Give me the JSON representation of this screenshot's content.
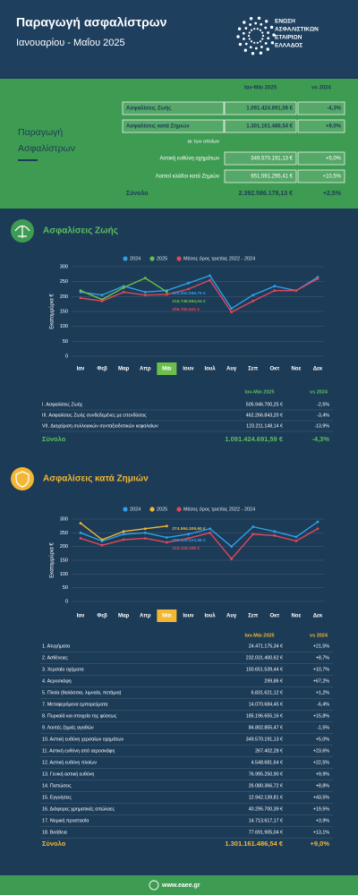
{
  "header": {
    "title": "Παραγωγή ασφαλίστρων",
    "subtitle": "Ιανουαρίου - Μαΐου 2025",
    "logo": [
      "ΕΝΩΣΗ",
      "ΑΣΦΑΛΙΣΤΙΚΩΝ",
      "ΕΤΑΙΡΙΩΝ",
      "ΕΛΛΑΔΟΣ"
    ]
  },
  "summary": {
    "label": [
      "Παραγωγή",
      "Ασφαλίστρων"
    ],
    "columns": [
      "Ιαν-Μάι 2025",
      "vs 2024"
    ],
    "rows": [
      [
        "Ασφαλίσεις Ζωής",
        "1.091.424.691,59 €",
        "-4,3%"
      ],
      [
        "Ασφαλίσεις κατά Ζημιών",
        "1.301.161.486,54 €",
        "+9,0%"
      ]
    ],
    "subheading": "εκ των οποίων",
    "subrows": [
      [
        "Αστική ευθύνη οχημάτων",
        "349.570.191,13 €",
        "+5,0%"
      ],
      [
        "Λοιποί κλάδοι κατά Ζημιών",
        "951.591.295,41 €",
        "+10,5%"
      ]
    ],
    "total": [
      "Σύνολο",
      "2.392.586.178,13 €",
      "+2,5%"
    ]
  },
  "chart_data": [
    {
      "type": "line",
      "title": "Ασφαλίσεις Ζωής",
      "y_label": "Εκατομμύρια €",
      "grid": true,
      "legend": "top",
      "categories": [
        "Ιαν",
        "Φεβ",
        "Μαρ",
        "Απρ",
        "Μάι",
        "Ιουν",
        "Ιουλ",
        "Αυγ",
        "Σεπ",
        "Οκτ",
        "Νοε",
        "Δεκ"
      ],
      "ylim": [
        0,
        300
      ],
      "yticks": [
        0,
        50,
        100,
        150,
        200,
        250,
        300
      ],
      "series": [
        {
          "name": "2024",
          "color": "#2e9fe6",
          "values": [
            215,
            205,
            235,
            215,
            220.25269979,
            245,
            270,
            160,
            205,
            235,
            220,
            265
          ],
          "value_labels": [
            null,
            null,
            null,
            null,
            "220.252.699,79 €",
            null,
            null,
            null,
            null,
            null,
            null,
            null
          ]
        },
        {
          "name": "2025",
          "color": "#6cc04a",
          "values": [
            220,
            190,
            230,
            262,
            215.74899404,
            null,
            null,
            null,
            null,
            null,
            null,
            null
          ],
          "value_labels": [
            null,
            null,
            null,
            null,
            "215.748.994,04 €",
            null,
            null,
            null,
            null,
            null,
            null,
            null
          ]
        },
        {
          "name": "Μέσος όρος τριετίας 2022 - 2024",
          "color": "#e2475a",
          "values": [
            195,
            185,
            215,
            205,
            206.782621,
            225,
            255,
            148,
            185,
            220,
            220,
            260
          ],
          "value_labels": [
            null,
            null,
            null,
            null,
            "206.782.621 €",
            null,
            null,
            null,
            null,
            null,
            null,
            null
          ]
        }
      ]
    },
    {
      "type": "line",
      "title": "Ασφαλίσεις κατά Ζημιών",
      "y_label": "Εκατομμύρια €",
      "grid": true,
      "legend": "top",
      "categories": [
        "Ιαν",
        "Φεβ",
        "Μαρ",
        "Απρ",
        "Μάι",
        "Ιουν",
        "Ιουλ",
        "Αυγ",
        "Σεπ",
        "Οκτ",
        "Νοε",
        "Δεκ"
      ],
      "ylim": [
        0,
        300
      ],
      "yticks": [
        0,
        50,
        100,
        150,
        200,
        250,
        300
      ],
      "series": [
        {
          "name": "2024",
          "color": "#2e9fe6",
          "values": [
            250,
            220,
            245,
            250,
            233.12642488,
            245,
            265,
            200,
            272,
            255,
            235,
            290
          ],
          "value_labels": [
            null,
            null,
            null,
            null,
            "233.126.424,88 €",
            null,
            null,
            null,
            null,
            null,
            null,
            null
          ]
        },
        {
          "name": "2025",
          "color": "#f3b733",
          "values": [
            285,
            225,
            255,
            265,
            274.5943096,
            null,
            null,
            null,
            null,
            null,
            null,
            null
          ],
          "value_labels": [
            null,
            null,
            null,
            null,
            "274.594.309,60 €",
            null,
            null,
            null,
            null,
            null,
            null,
            null
          ]
        },
        {
          "name": "Μέσος όρος τριετίας 2022 - 2024",
          "color": "#e2475a",
          "values": [
            230,
            205,
            225,
            230,
            215.228298,
            230,
            250,
            155,
            245,
            240,
            220,
            265
          ],
          "value_labels": [
            null,
            null,
            null,
            null,
            "215.228.298 €",
            null,
            null,
            null,
            null,
            null,
            null,
            null
          ]
        }
      ]
    }
  ],
  "tables": [
    {
      "color": "#5cbf5f",
      "columns": [
        "Ιαν-Μάι 2025",
        "vs 2024"
      ],
      "rows": [
        [
          "I. Ασφαλίσεις Ζωής",
          "505.946.700,25 €",
          "-2,5%"
        ],
        [
          "III. Ασφαλίσεις Ζωής συνδεδεμένες με επενδύσεις",
          "462.266.843,20 €",
          "-3,4%"
        ],
        [
          "VII. Διαχείριση συλλογικών συνταξιοδοτικών κεφαλαίων",
          "123.211.148,14 €",
          "-13,9%"
        ]
      ],
      "total": [
        "Σύνολο",
        "1.091.424.691,59 €",
        "-4,3%"
      ]
    },
    {
      "color": "#f3b733",
      "columns": [
        "Ιαν-Μάι 2025",
        "vs 2024"
      ],
      "rows": [
        [
          "1. Ατυχήματα",
          "24.471.175,34 €",
          "+21,5%"
        ],
        [
          "2. Ασθένειες",
          "232.031.400,62 €",
          "+8,7%"
        ],
        [
          "3. Χερσαία οχήματα",
          "150.651.539,44 €",
          "+10,7%"
        ],
        [
          "4. Αεροσκάφη",
          "299,86 €",
          "+67,2%"
        ],
        [
          "5. Πλοία (θαλάσσια, λιμναία, ποτάμια)",
          "6.831.621,12 €",
          "+1,2%"
        ],
        [
          "7. Μεταφερόμενα εμπορεύματα",
          "14.070.684,45 €",
          "-6,4%"
        ],
        [
          "8. Πυρκαϊά και στοιχεία της φύσεως",
          "185.196.655,16 €",
          "+15,8%"
        ],
        [
          "9. Λοιπές ζημιές αγαθών",
          "84.802.855,47 €",
          "-1,5%"
        ],
        [
          "10. Αστική ευθύνη χερσαίων οχημάτων",
          "349.570.191,13 €",
          "+5,0%"
        ],
        [
          "11. Αστική ευθύνη από αεροσκάφη",
          "267.402,28 €",
          "+23,6%"
        ],
        [
          "12. Αστική ευθύνη πλοίων",
          "4.548.681,64 €",
          "+22,5%"
        ],
        [
          "13. Γενική αστική ευθύνη",
          "76.995.250,90 €",
          "+9,9%"
        ],
        [
          "14. Πιστώσεις",
          "26.080.366,72 €",
          "+8,8%"
        ],
        [
          "15. Εγγυήσεις",
          "12.942.139,81 €",
          "+43,5%"
        ],
        [
          "16. Διάφορες χρηματικές απώλειες",
          "40.295.700,39 €",
          "+19,5%"
        ],
        [
          "17. Νομική προστασία",
          "14.713.617,17 €",
          "+3,9%"
        ],
        [
          "18. Βοήθεια",
          "77.691.905,04 €",
          "+13,1%"
        ]
      ],
      "total": [
        "Σύνολο",
        "1.301.161.486,54 €",
        "+9,0%"
      ]
    }
  ],
  "footer": "www.eaee.gr"
}
